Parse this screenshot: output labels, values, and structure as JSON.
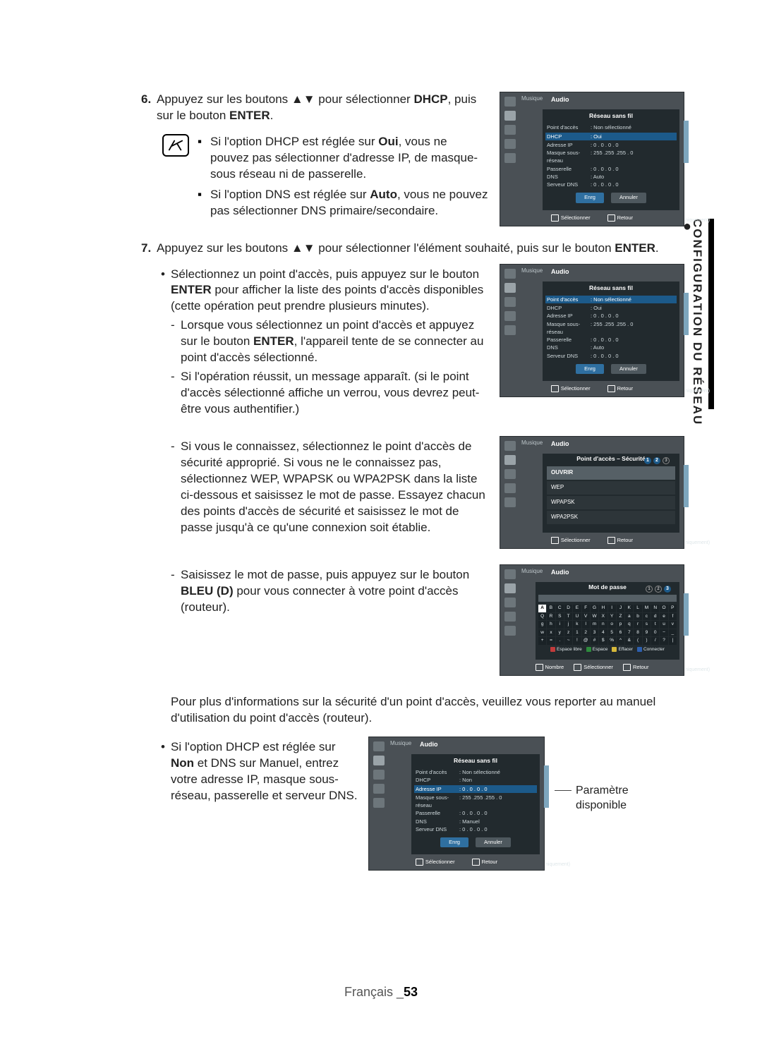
{
  "side": {
    "bullet": "●",
    "label": "CONFIGURATION DU RÉSEAU"
  },
  "step6": {
    "num": "6.",
    "text_a": "Appuyez sur les boutons ",
    "arrows": "▲▼",
    "text_b": " pour sélectionner ",
    "kw": "DHCP",
    "text_c": ", puis sur le bouton ",
    "kw2": "ENTER",
    "text_d": "."
  },
  "note": {
    "i1a": "Si l'option DHCP est réglée sur ",
    "i1b": "Oui",
    "i1c": ", vous ne pouvez pas sélectionner d'adresse IP, de masque-sous réseau ni de passerelle.",
    "i2a": "Si l'option DNS est réglée sur ",
    "i2b": "Auto",
    "i2c": ", vous ne pouvez pas sélectionner DNS primaire/secondaire."
  },
  "step7": {
    "num": "7.",
    "line_a": "Appuyez sur les boutons ",
    "arrows": "▲▼",
    "line_b": " pour sélectionner l'élément souhaité, puis sur le bouton ",
    "kw": "ENTER",
    "line_c": ".",
    "b1a": "Sélectionnez un point d'accès, puis appuyez sur le bouton ",
    "b1kw": "ENTER",
    "b1b": " pour afficher la liste des points d'accès disponibles (cette opération peut prendre plusieurs minutes).",
    "d1a": "Lorsque vous sélectionnez un point d'accès et appuyez sur le bouton ",
    "d1kw": "ENTER",
    "d1b": ", l'appareil tente de se connecter au point d'accès sélectionné.",
    "d2": "Si l'opération réussit, un message apparaît. (si le point d'accès sélectionné affiche un verrou, vous devrez peut-être vous authentifier.)",
    "d3": "Si vous le connaissez, sélectionnez le point d'accès de sécurité approprié. Si vous ne le connaissez pas, sélectionnez WEP, WPAPSK ou WPA2PSK dans la liste ci-dessous et saisissez le mot de passe. Essayez chacun des points d'accès de sécurité et saisissez le mot de passe jusqu'à ce qu'une connexion soit établie.",
    "d4a": "Saisissez le mot de passe, puis appuyez sur le bouton ",
    "d4kw": "BLEU (D)",
    "d4b": " pour vous connecter à votre point d'accès (routeur).",
    "info": "Pour plus d'informations sur la sécurité d'un point d'accès, veuillez vous reporter au manuel d'utilisation du point d'accès (routeur).",
    "b2a": "Si l'option DHCP est réglée sur ",
    "b2kw": "Non",
    "b2b": " et DNS sur Manuel, entrez votre adresse IP, masque sous-réseau, passerelle et serveur DNS."
  },
  "anno": {
    "l1": "Paramètre",
    "l2": "disponible"
  },
  "mini": {
    "tab1": "Musique",
    "tab2": "Audio",
    "title_net": "Réseau sans fil",
    "title_sec": "Point d'accès – Sécurité",
    "title_pwd": "Mot de passe",
    "rows": {
      "ap": {
        "k": "Point d'accès",
        "v": ": Non sélectionné"
      },
      "dhcp": {
        "k": "DHCP",
        "v": ": Oui"
      },
      "dhcp_no": {
        "k": "DHCP",
        "v": ": Non"
      },
      "ip": {
        "k": "Adresse IP",
        "v": ":   0 . 0 . 0 . 0"
      },
      "mask": {
        "k": "Masque sous-réseau",
        "v": ": 255 .255 .255 . 0"
      },
      "gw": {
        "k": "Passerelle",
        "v": ":   0 . 0 . 0 . 0"
      },
      "dns": {
        "k": "DNS",
        "v": ": Auto"
      },
      "dnssrv": {
        "k": "Serveur DNS",
        "v": ":   0 . 0 . 0 . 0"
      }
    },
    "btn_save": "Enrg",
    "btn_cancel": "Annuler",
    "foot_sel": "Sélectionner",
    "foot_ret": "Retour",
    "foot_num": "Nombre",
    "side_txt": "niquement)",
    "sec": {
      "o1": "OUVRIR",
      "o2": "WEP",
      "o3": "WPAPSK",
      "o4": "WPA2PSK"
    },
    "kbd_rows": [
      [
        "A",
        "B",
        "C",
        "D",
        "E",
        "F",
        "G",
        "H",
        "I",
        "J",
        "K",
        "L",
        "M",
        "N",
        "O",
        "P"
      ],
      [
        "Q",
        "R",
        "S",
        "T",
        "U",
        "V",
        "W",
        "X",
        "Y",
        "Z",
        "a",
        "b",
        "c",
        "d",
        "e",
        "f"
      ],
      [
        "g",
        "h",
        "i",
        "j",
        "k",
        "l",
        "m",
        "n",
        "o",
        "p",
        "q",
        "r",
        "s",
        "t",
        "u",
        "v"
      ],
      [
        "w",
        "x",
        "y",
        "z",
        "1",
        "2",
        "3",
        "4",
        "5",
        "6",
        "7",
        "8",
        "9",
        "0",
        "−",
        "_"
      ],
      [
        "+",
        "=",
        ".",
        "~",
        "!",
        "@",
        "#",
        "$",
        "%",
        "^",
        "&",
        "(",
        ")",
        "/",
        "?",
        "|"
      ]
    ],
    "color_btns": {
      "a": "Espace libre",
      "b": "Espace",
      "c": "Effacer",
      "d": "Connecter"
    },
    "colors": {
      "a": "#c23b3b",
      "b": "#2e8b3d",
      "c": "#d6b83a",
      "d": "#2d5fae"
    }
  },
  "footer": {
    "lang": "Français ",
    "sep": "_",
    "page": "53"
  }
}
